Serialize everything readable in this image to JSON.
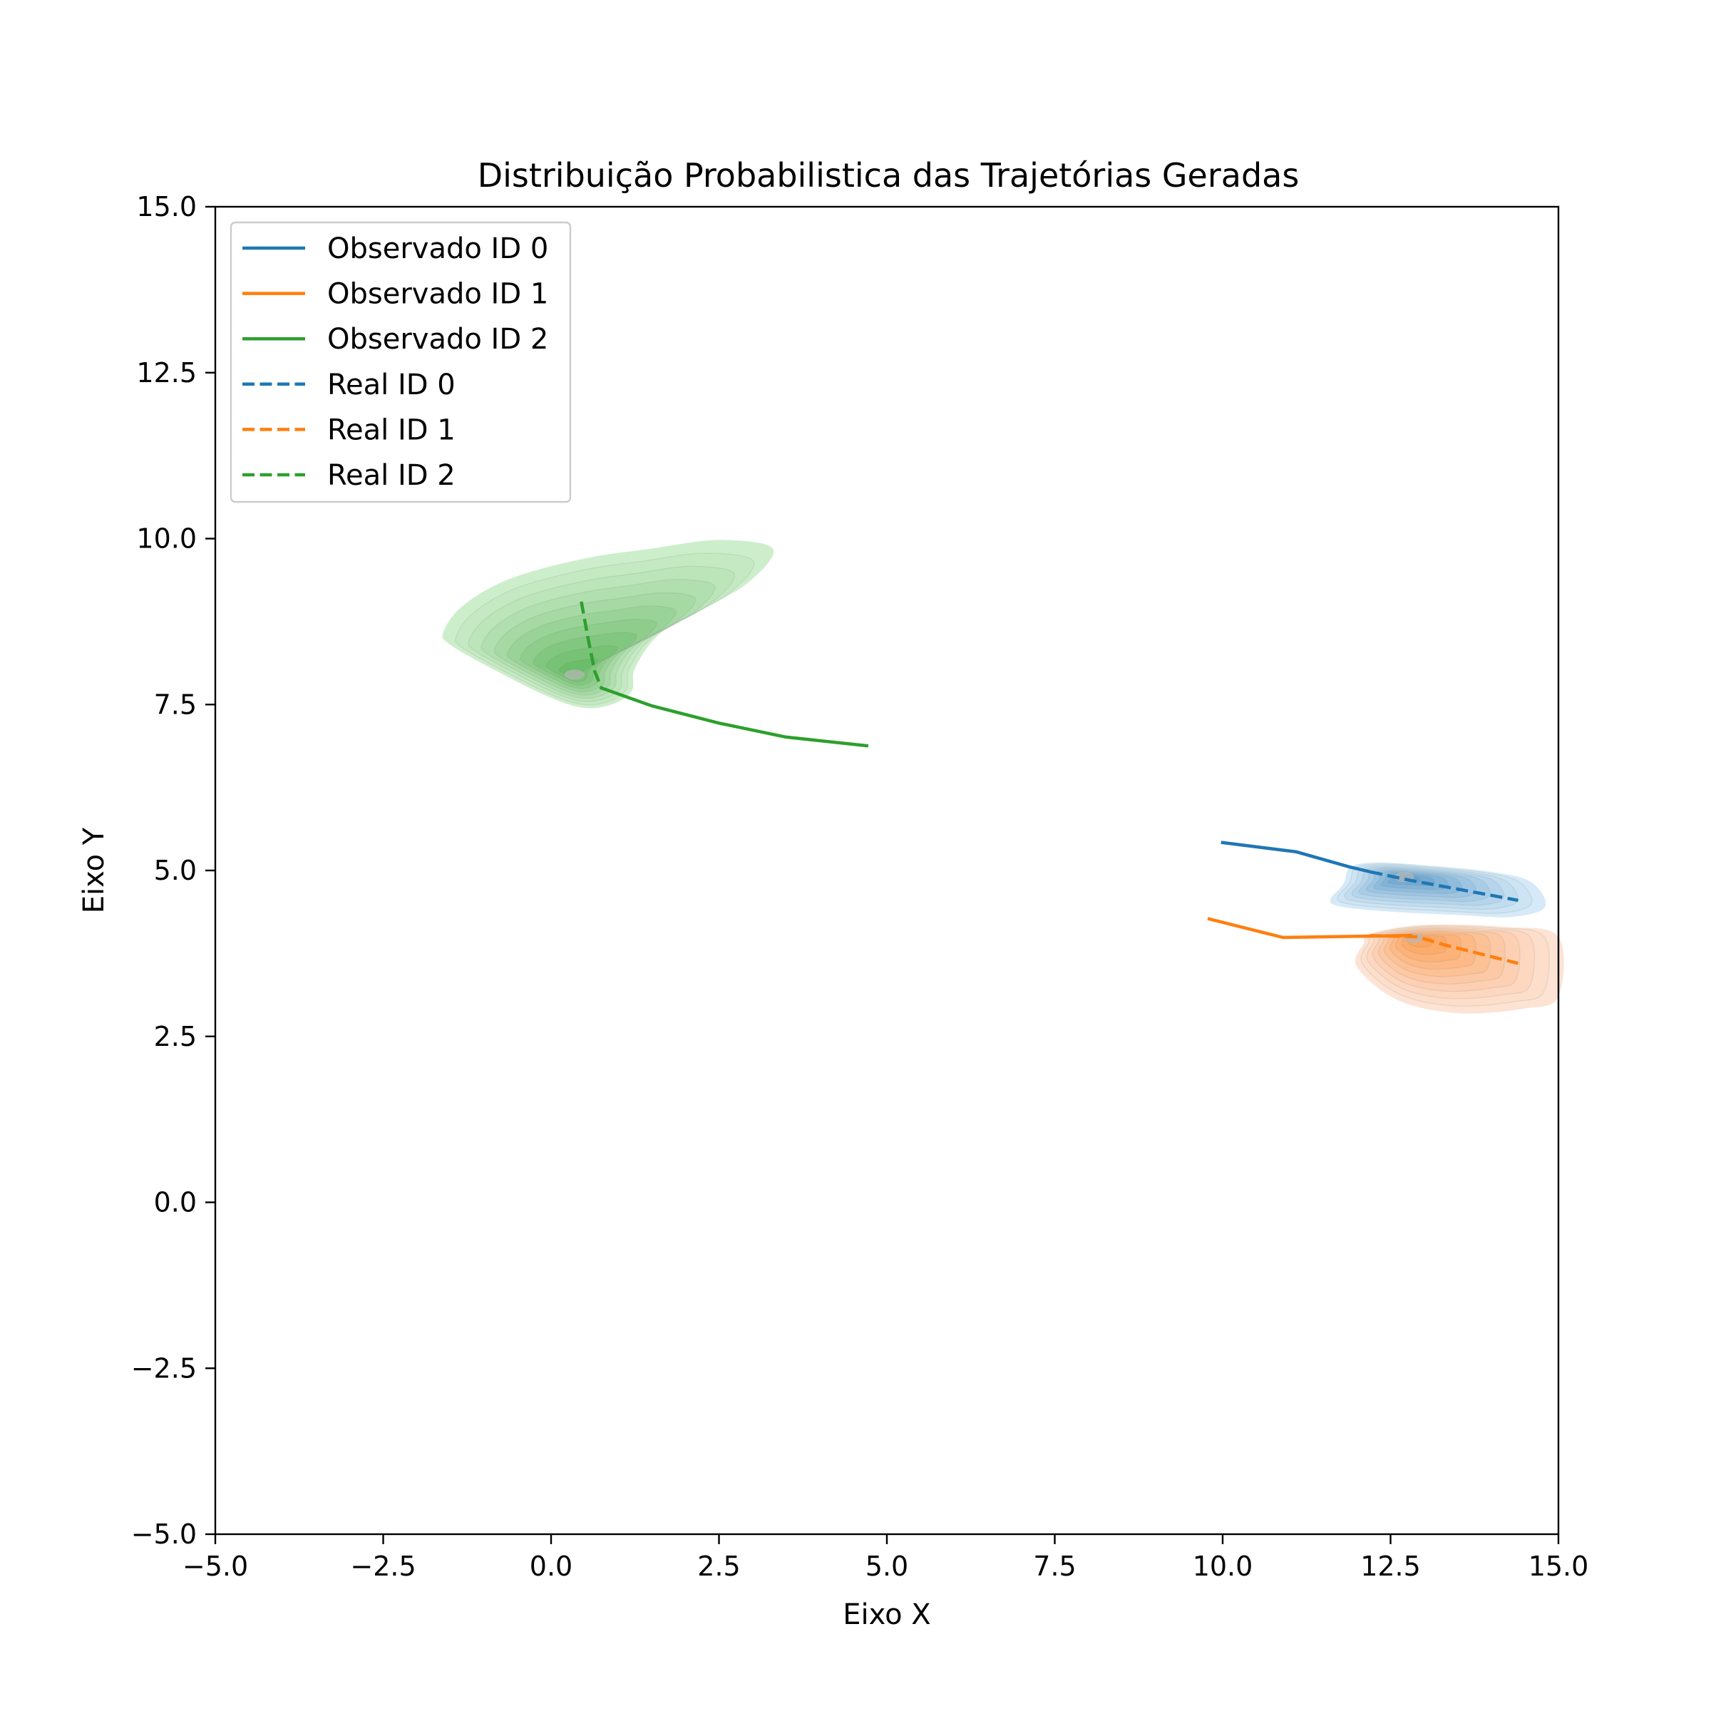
{
  "chart_data": {
    "type": "line",
    "title": "Distribuição Probabilistica das Trajetórias Geradas",
    "xlabel": "Eixo X",
    "ylabel": "Eixo Y",
    "xlim": [
      -5.0,
      15.0
    ],
    "ylim": [
      -5.0,
      15.0
    ],
    "xticks": [
      -5.0,
      -2.5,
      0.0,
      2.5,
      5.0,
      7.5,
      10.0,
      12.5,
      15.0
    ],
    "yticks": [
      -5.0,
      -2.5,
      0.0,
      2.5,
      5.0,
      7.5,
      10.0,
      12.5,
      15.0
    ],
    "xtick_labels": [
      "−5.0",
      "−2.5",
      "0.0",
      "2.5",
      "5.0",
      "7.5",
      "10.0",
      "12.5",
      "15.0"
    ],
    "ytick_labels": [
      "−5.0",
      "−2.5",
      "0.0",
      "2.5",
      "5.0",
      "7.5",
      "10.0",
      "12.5",
      "15.0"
    ],
    "grid": false,
    "legend_position": "upper-left",
    "series": [
      {
        "name": "Observado ID 0",
        "style": "solid",
        "color": "#1f77b4",
        "x": [
          10.0,
          11.1,
          11.9,
          12.2
        ],
        "y": [
          5.42,
          5.28,
          5.05,
          4.98
        ]
      },
      {
        "name": "Observado ID 1",
        "style": "solid",
        "color": "#ff7f0e",
        "x": [
          9.8,
          10.9,
          12.1,
          12.8
        ],
        "y": [
          4.27,
          3.99,
          4.01,
          4.02
        ]
      },
      {
        "name": "Observado ID 2",
        "style": "solid",
        "color": "#2ca02c",
        "x": [
          0.75,
          1.5,
          2.5,
          3.5,
          4.7
        ],
        "y": [
          7.75,
          7.48,
          7.22,
          7.01,
          6.88
        ]
      },
      {
        "name": "Real ID 0",
        "style": "dashed",
        "color": "#1f77b4",
        "x": [
          12.2,
          12.8,
          13.5,
          14.4
        ],
        "y": [
          4.98,
          4.85,
          4.72,
          4.55
        ]
      },
      {
        "name": "Real ID 1",
        "style": "dashed",
        "color": "#ff7f0e",
        "x": [
          12.2,
          12.9,
          13.3,
          14.4
        ],
        "y": [
          4.02,
          4.0,
          3.88,
          3.6
        ]
      },
      {
        "name": "Real ID 2",
        "style": "dashed",
        "color": "#2ca02c",
        "x": [
          0.45,
          0.55,
          0.65,
          0.75
        ],
        "y": [
          9.05,
          8.5,
          8.0,
          7.75
        ]
      }
    ],
    "density_regions": [
      {
        "color": "#2ca02c",
        "fill": "#cdeecb",
        "outline_x": [
          -1.6,
          -1.3,
          -0.6,
          0.5,
          1.5,
          2.5,
          3.3,
          2.95,
          2.2,
          1.6,
          1.25,
          1.2,
          0.9,
          0.5,
          0.0,
          -0.8,
          -1.5
        ],
        "outline_y": [
          8.6,
          9.0,
          9.4,
          9.7,
          9.85,
          9.98,
          9.85,
          9.35,
          8.9,
          8.55,
          8.05,
          7.7,
          7.5,
          7.45,
          7.6,
          8.0,
          8.4
        ],
        "peak": [
          0.35,
          7.95
        ]
      },
      {
        "color": "#1f77b4",
        "fill": "#d6e9f8",
        "outline_x": [
          11.9,
          12.3,
          13.0,
          14.0,
          14.6,
          14.8,
          14.3,
          13.5,
          12.5,
          11.8,
          11.6,
          11.8
        ],
        "outline_y": [
          5.05,
          5.12,
          5.08,
          4.98,
          4.82,
          4.45,
          4.3,
          4.33,
          4.38,
          4.45,
          4.55,
          4.8
        ],
        "peak": [
          12.7,
          4.9
        ]
      },
      {
        "color": "#ff7f0e",
        "fill": "#fde3d4",
        "outline_x": [
          12.2,
          13.0,
          14.2,
          15.0,
          15.0,
          14.5,
          13.5,
          12.6,
          12.0,
          12.1
        ],
        "outline_y": [
          4.05,
          4.18,
          4.15,
          4.0,
          3.1,
          2.92,
          2.85,
          3.05,
          3.55,
          3.9
        ],
        "peak": [
          12.85,
          3.98
        ]
      }
    ]
  }
}
